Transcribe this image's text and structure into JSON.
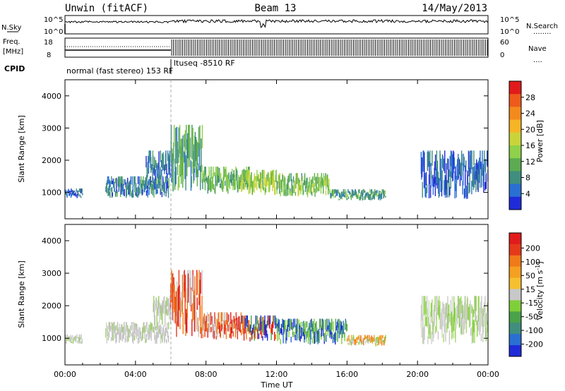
{
  "header": {
    "radar": "Unwin (fitACF)",
    "beam": "Beam 13",
    "date": "14/May/2013"
  },
  "noise_panel": {
    "left_label": "N.Sky",
    "left_ticks": [
      "10^5",
      "10^0"
    ],
    "right_ticks": [
      "10^5",
      "10^0"
    ],
    "right_label": "N.Search",
    "right_legend": "........"
  },
  "freq_panel": {
    "left_label_1": "Freq.",
    "left_label_2": "[MHz]",
    "left_ticks": [
      "18",
      "8"
    ],
    "right_ticks": [
      "60",
      "0"
    ],
    "right_label": "Nave",
    "right_legend": "...."
  },
  "cpid": {
    "label": "CPID",
    "mode_1": "normal (fast stereo) 153 RF",
    "mode_2": "ltuseq -8510 RF"
  },
  "chart_data": [
    {
      "type": "heatmap",
      "title": "Power",
      "ylabel": "Slant Range [km]",
      "xlabel": "",
      "ylim": [
        180,
        4500
      ],
      "y_ticks": [
        "1000",
        "2000",
        "3000",
        "4000"
      ],
      "x_range_hours": [
        0,
        24
      ],
      "colorbar": {
        "label": "Power [dB]",
        "ticks": [
          "4",
          "8",
          "12",
          "16",
          "20",
          "24",
          "28"
        ],
        "range": [
          0,
          32
        ],
        "colors": [
          "#1f2bd8",
          "#2a6fd2",
          "#3f8e7e",
          "#5cab52",
          "#8fd14a",
          "#c9d43a",
          "#f5b526",
          "#f38a1e",
          "#ee5a1b",
          "#e11b1b"
        ]
      },
      "regions": [
        {
          "t0": 0.0,
          "t1": 1.0,
          "r0": 820,
          "r1": 1120,
          "level": 0.15
        },
        {
          "t0": 2.3,
          "t1": 5.9,
          "r0": 820,
          "r1": 1500,
          "level": 0.2
        },
        {
          "t0": 4.6,
          "t1": 6.0,
          "r0": 1300,
          "r1": 2300,
          "level": 0.2
        },
        {
          "t0": 6.0,
          "t1": 7.8,
          "r0": 1000,
          "r1": 3100,
          "level": 0.3
        },
        {
          "t0": 7.8,
          "t1": 10.5,
          "r0": 950,
          "r1": 1800,
          "level": 0.35
        },
        {
          "t0": 10.0,
          "t1": 12.0,
          "r0": 900,
          "r1": 1700,
          "level": 0.45
        },
        {
          "t0": 12.0,
          "t1": 15.0,
          "r0": 850,
          "r1": 1600,
          "level": 0.4
        },
        {
          "t0": 15.0,
          "t1": 18.2,
          "r0": 750,
          "r1": 1100,
          "level": 0.3
        },
        {
          "t0": 20.2,
          "t1": 24.0,
          "r0": 800,
          "r1": 2300,
          "level": 0.15
        }
      ]
    },
    {
      "type": "heatmap",
      "title": "Velocity",
      "ylabel": "Slant Range [km]",
      "xlabel": "Time UT",
      "ylim": [
        180,
        4500
      ],
      "y_ticks": [
        "1000",
        "2000",
        "3000",
        "4000"
      ],
      "x_ticks": [
        "00:00",
        "04:00",
        "08:00",
        "12:00",
        "16:00",
        "20:00",
        "00:00"
      ],
      "x_range_hours": [
        0,
        24
      ],
      "colorbar": {
        "label": "Velocity [m s^-1]",
        "ticks": [
          "200",
          "100",
          "50",
          "15",
          "-15",
          "-50",
          "-100",
          "-200"
        ],
        "colors": [
          "#1f2bd8",
          "#2a6fd2",
          "#3f8e7e",
          "#4aa24a",
          "#7fcf3a",
          "#c8c8c8",
          "#f5c030",
          "#f5a020",
          "#f07a1a",
          "#e43a1a",
          "#e11b1b"
        ]
      },
      "regions": [
        {
          "t0": 0.0,
          "t1": 1.0,
          "r0": 820,
          "r1": 1120,
          "vel": "grey"
        },
        {
          "t0": 2.3,
          "t1": 5.9,
          "r0": 820,
          "r1": 1500,
          "vel": "grey"
        },
        {
          "t0": 5.0,
          "t1": 6.0,
          "r0": 1300,
          "r1": 2300,
          "vel": "grey"
        },
        {
          "t0": 6.0,
          "t1": 7.8,
          "r0": 1000,
          "r1": 3100,
          "vel": "red"
        },
        {
          "t0": 7.8,
          "t1": 10.0,
          "r0": 950,
          "r1": 1800,
          "vel": "red"
        },
        {
          "t0": 10.0,
          "t1": 12.0,
          "r0": 900,
          "r1": 1700,
          "vel": "mixed"
        },
        {
          "t0": 12.0,
          "t1": 16.0,
          "r0": 800,
          "r1": 1600,
          "vel": "green"
        },
        {
          "t0": 16.0,
          "t1": 18.2,
          "r0": 750,
          "r1": 1100,
          "vel": "orange"
        },
        {
          "t0": 20.2,
          "t1": 24.0,
          "r0": 800,
          "r1": 2300,
          "vel": "lightgreen"
        }
      ]
    }
  ]
}
